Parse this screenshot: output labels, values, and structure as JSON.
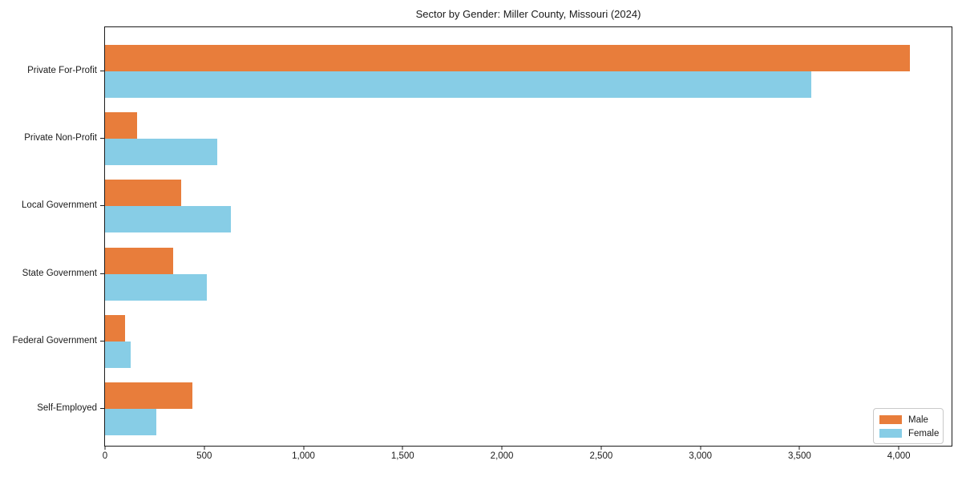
{
  "title": "Sector by Gender: Miller County, Missouri (2024)",
  "chart_data": {
    "type": "bar",
    "orientation": "horizontal",
    "title": "Sector by Gender: Miller County, Missouri (2024)",
    "categories": [
      "Private For-Profit",
      "Private Non-Profit",
      "Local Government",
      "State Government",
      "Federal Government",
      "Self-Employed"
    ],
    "series": [
      {
        "name": "Male",
        "color": "#e87d3b",
        "values": [
          4055,
          160,
          385,
          345,
          100,
          440
        ]
      },
      {
        "name": "Female",
        "color": "#87cde6",
        "values": [
          3560,
          565,
          635,
          515,
          130,
          260
        ]
      }
    ],
    "xlabel": "",
    "ylabel": "",
    "xlim": [
      0,
      4266
    ],
    "xticks": [
      {
        "value": 0,
        "label": "0"
      },
      {
        "value": 500,
        "label": "500"
      },
      {
        "value": 1000,
        "label": "1,000"
      },
      {
        "value": 1500,
        "label": "1,500"
      },
      {
        "value": 2000,
        "label": "2,000"
      },
      {
        "value": 2500,
        "label": "2,500"
      },
      {
        "value": 3000,
        "label": "3,000"
      },
      {
        "value": 3500,
        "label": "3,500"
      },
      {
        "value": 4000,
        "label": "4,000"
      }
    ],
    "grid": false,
    "legend": {
      "position": "lower right",
      "entries": [
        "Male",
        "Female"
      ]
    }
  },
  "colors": {
    "male": "#e87d3b",
    "female": "#87cde6",
    "spine": "#1c1c1c",
    "text": "#1a1a1a",
    "legend_border": "#c9c9c9",
    "background": "#ffffff"
  }
}
